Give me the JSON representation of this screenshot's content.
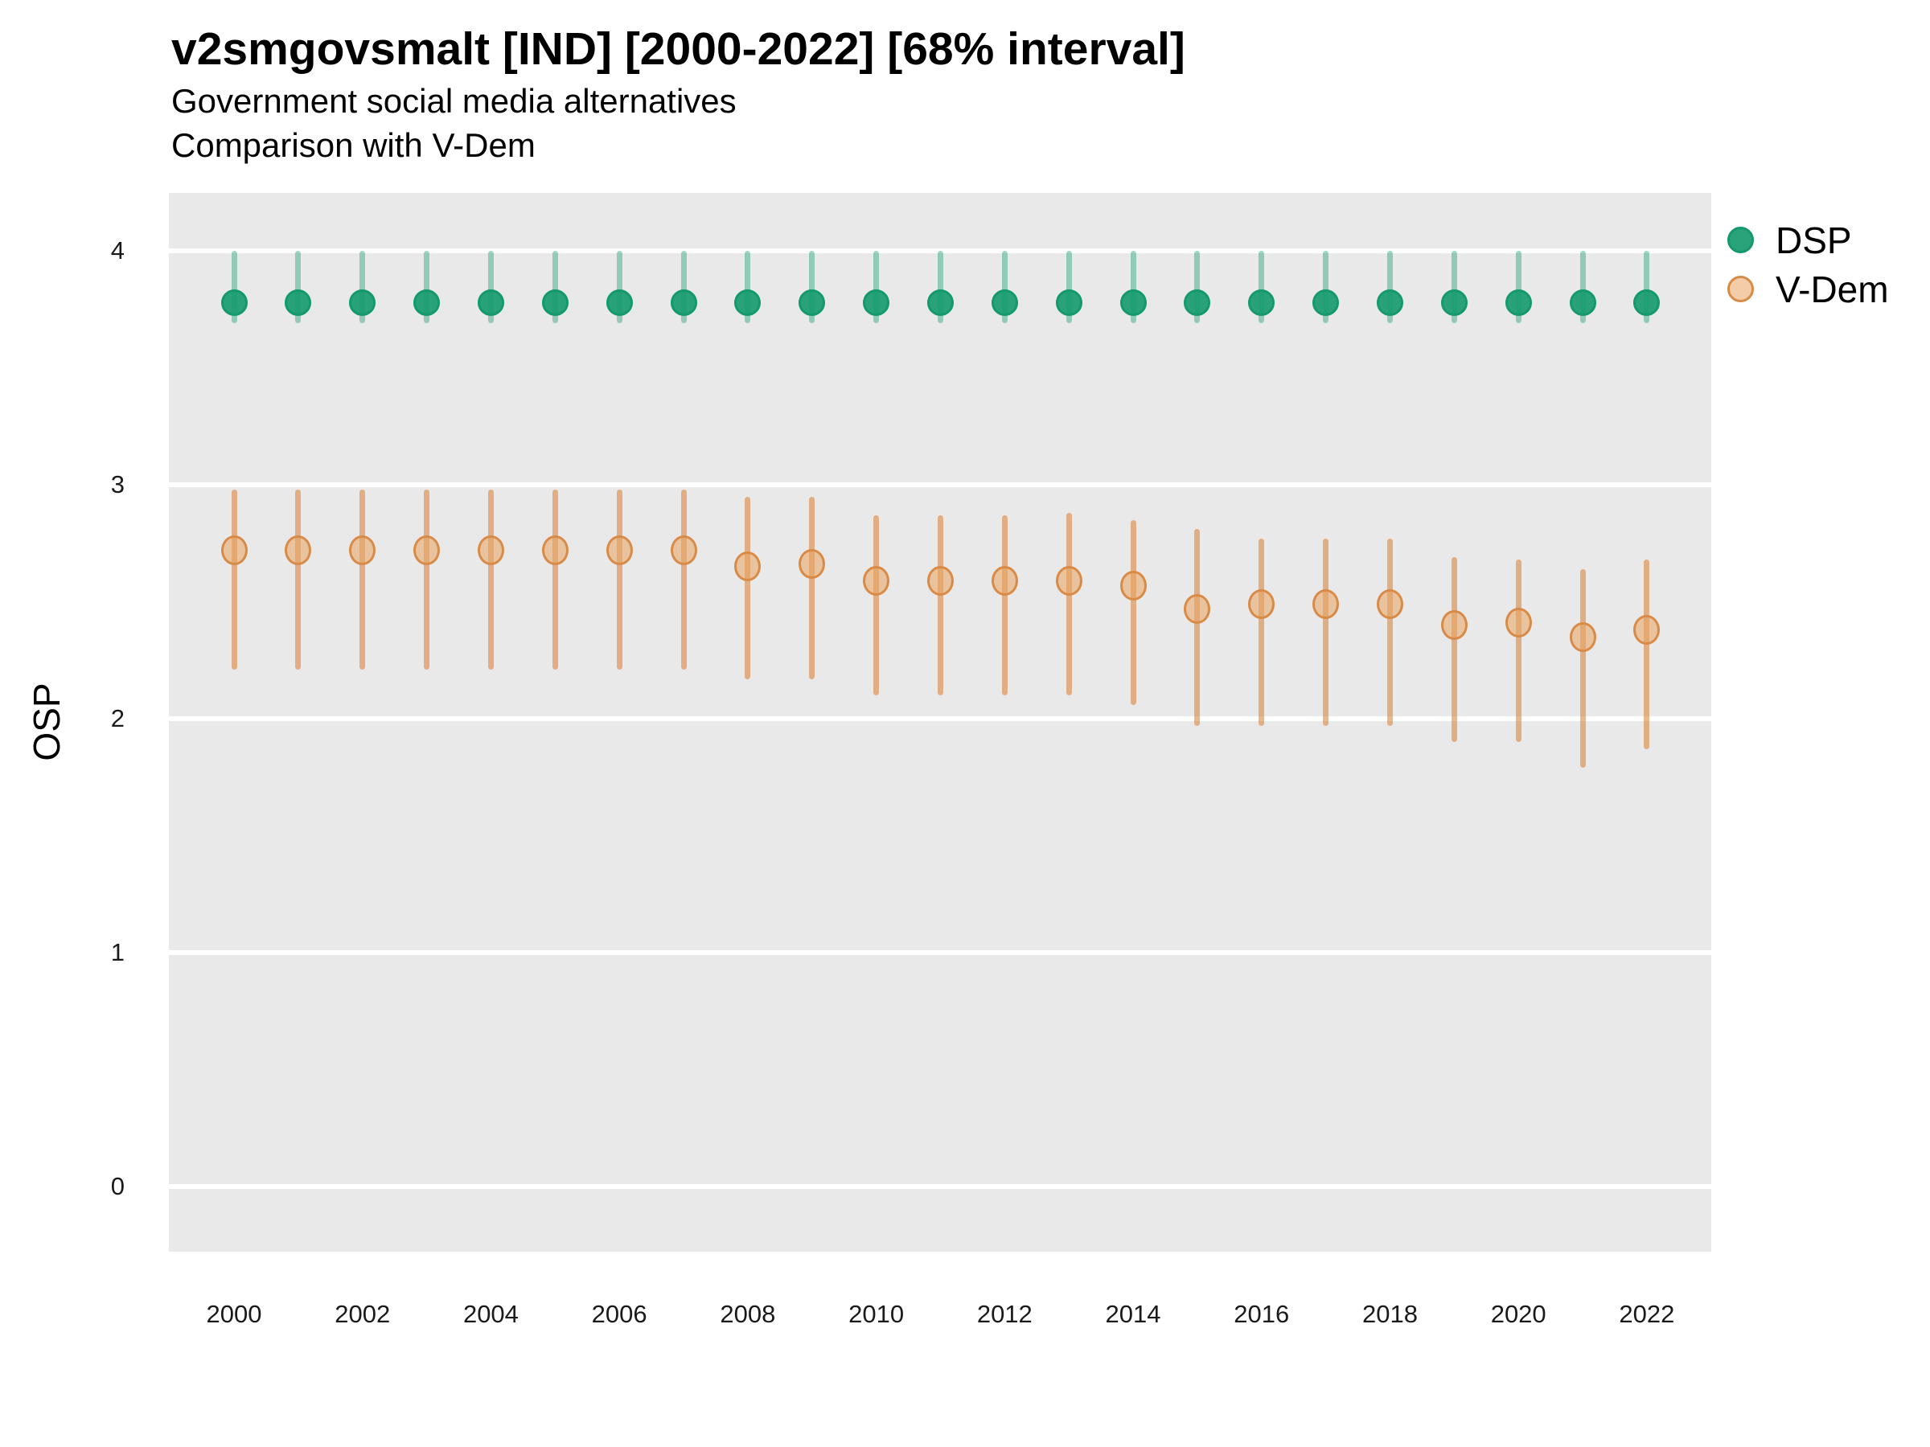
{
  "title": "v2smgovsmalt [IND] [2000-2022] [68% interval]",
  "subtitle1": "Government social media alternatives",
  "subtitle2": "Comparison with V-Dem",
  "ylabel": "OSP",
  "legend": [
    {
      "label": "DSP"
    },
    {
      "label": "V-Dem"
    }
  ],
  "colors": {
    "panel_bg": "#e9e9e9",
    "grid": "#ffffff",
    "dsp_stroke": "#14996b",
    "dsp_fill": "rgba(24,155,112,0.92)",
    "dsp_whisker": "rgba(27,158,119,0.42)",
    "vdem_stroke": "#d88b47",
    "vdem_fill": "rgba(233,164,96,0.55)",
    "vdem_whisker": "rgba(219,126,48,0.55)"
  },
  "chart_data": {
    "type": "scatter",
    "subtype": "pointrange-interval",
    "interval": "68%",
    "title": "v2smgovsmalt [IND] [2000-2022] [68% interval]",
    "xlabel": "",
    "ylabel": "OSP",
    "x": [
      2000,
      2001,
      2002,
      2003,
      2004,
      2005,
      2006,
      2007,
      2008,
      2009,
      2010,
      2011,
      2012,
      2013,
      2014,
      2015,
      2016,
      2017,
      2018,
      2019,
      2020,
      2021,
      2022
    ],
    "series": [
      {
        "name": "DSP",
        "est": [
          3.78,
          3.78,
          3.78,
          3.78,
          3.78,
          3.78,
          3.78,
          3.78,
          3.78,
          3.78,
          3.78,
          3.78,
          3.78,
          3.78,
          3.78,
          3.78,
          3.78,
          3.78,
          3.78,
          3.78,
          3.78,
          3.78,
          3.78
        ],
        "lo": [
          3.69,
          3.69,
          3.69,
          3.69,
          3.69,
          3.69,
          3.69,
          3.69,
          3.69,
          3.69,
          3.69,
          3.69,
          3.69,
          3.69,
          3.69,
          3.69,
          3.69,
          3.69,
          3.69,
          3.69,
          3.69,
          3.69,
          3.69
        ],
        "hi": [
          4.0,
          4.0,
          4.0,
          4.0,
          4.0,
          4.0,
          4.0,
          4.0,
          4.0,
          4.0,
          4.0,
          4.0,
          4.0,
          4.0,
          4.0,
          4.0,
          4.0,
          4.0,
          4.0,
          4.0,
          4.0,
          4.0,
          4.0
        ]
      },
      {
        "name": "V-Dem",
        "est": [
          2.72,
          2.72,
          2.72,
          2.72,
          2.72,
          2.72,
          2.72,
          2.72,
          2.65,
          2.66,
          2.59,
          2.59,
          2.59,
          2.59,
          2.57,
          2.47,
          2.49,
          2.49,
          2.49,
          2.4,
          2.41,
          2.35,
          2.38
        ],
        "lo": [
          2.21,
          2.21,
          2.21,
          2.21,
          2.21,
          2.21,
          2.21,
          2.21,
          2.17,
          2.17,
          2.1,
          2.1,
          2.1,
          2.1,
          2.06,
          1.97,
          1.97,
          1.97,
          1.97,
          1.9,
          1.9,
          1.79,
          1.87
        ],
        "hi": [
          2.98,
          2.98,
          2.98,
          2.98,
          2.98,
          2.98,
          2.98,
          2.98,
          2.95,
          2.95,
          2.87,
          2.87,
          2.87,
          2.88,
          2.85,
          2.81,
          2.77,
          2.77,
          2.77,
          2.69,
          2.68,
          2.64,
          2.68
        ]
      }
    ],
    "xticks": [
      2000,
      2002,
      2004,
      2006,
      2008,
      2010,
      2012,
      2014,
      2016,
      2018,
      2020,
      2022
    ],
    "yticks": [
      0,
      1,
      2,
      3,
      4
    ],
    "ylim": [
      0,
      4
    ],
    "grid": "horizontal-major-only",
    "legend_position": "right"
  }
}
